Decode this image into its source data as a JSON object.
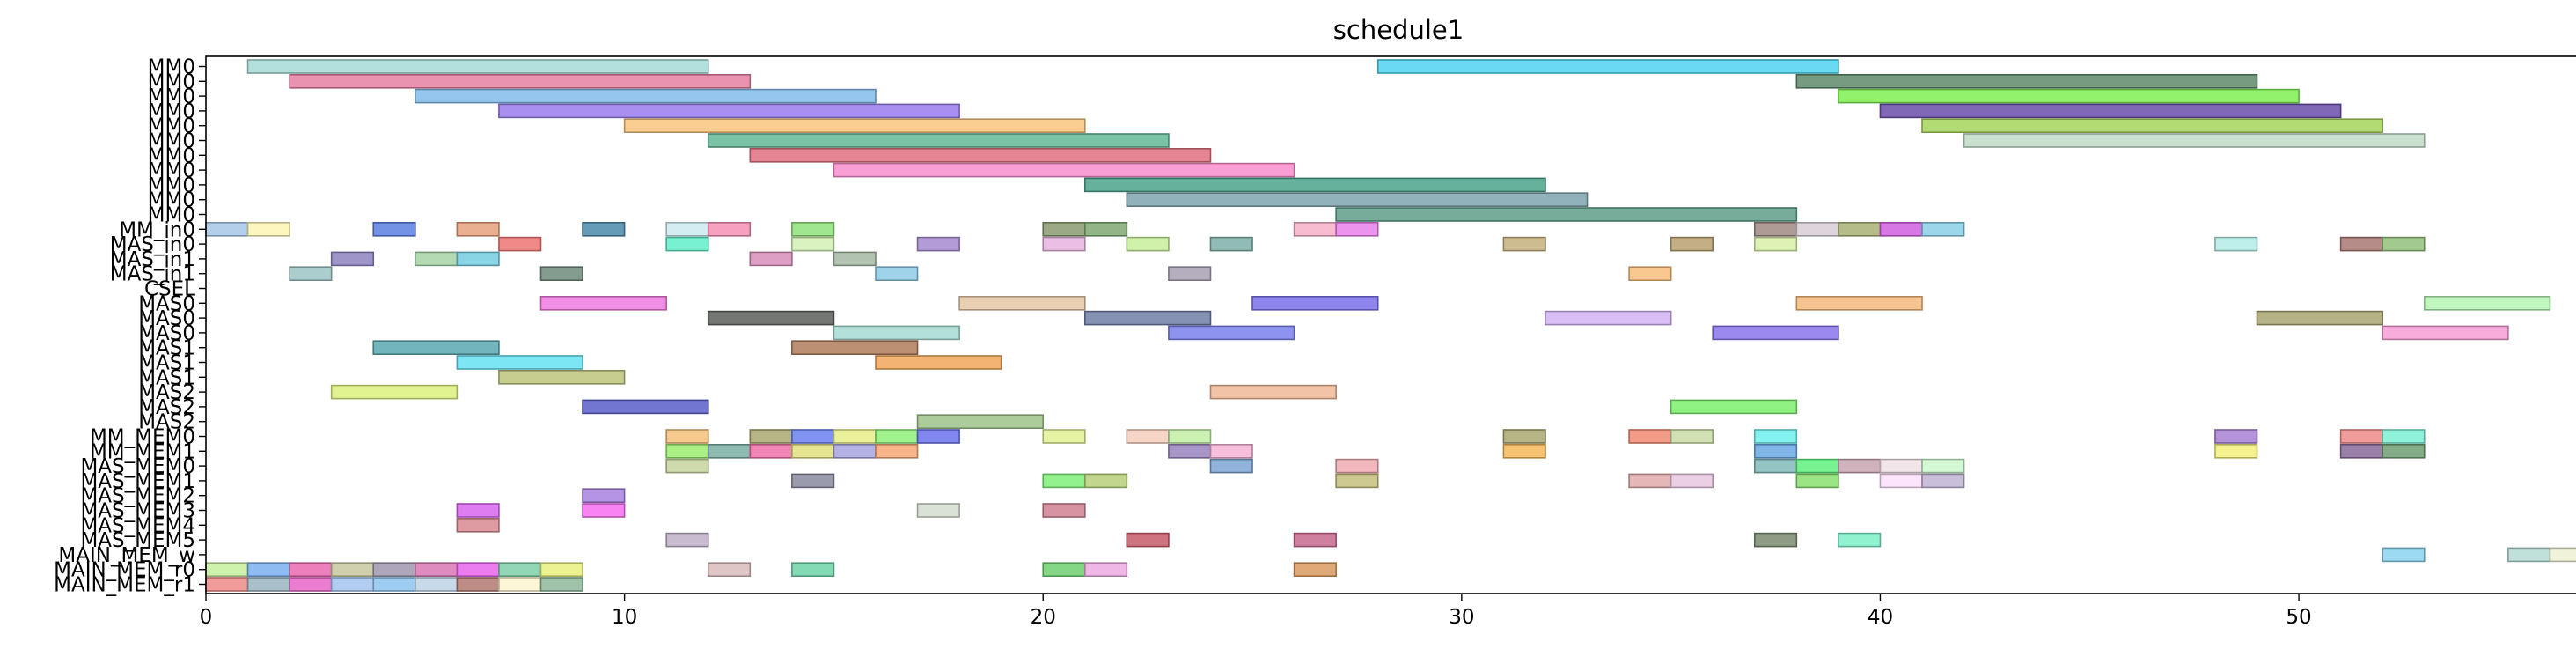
{
  "chart_data": {
    "type": "gantt",
    "title": "schedule1",
    "xlabel": "",
    "ylabel": "",
    "xlim": [
      0,
      57
    ],
    "xticks": [
      0,
      10,
      20,
      30,
      40,
      50
    ],
    "grid": false,
    "rows": [
      "MM0",
      "MM0",
      "MM0",
      "MM0",
      "MM0",
      "MM0",
      "MM0",
      "MM0",
      "MM0",
      "MM0",
      "MM0",
      "MM_in0",
      "MAS_in0",
      "MAS_in1",
      "MAS_in1",
      "CSEL",
      "MAS0",
      "MAS0",
      "MAS0",
      "MAS1",
      "MAS1",
      "MAS1",
      "MAS2",
      "MAS2",
      "MAS2",
      "MM_MEM0",
      "MM_MEM1",
      "MAS_MEM0",
      "MAS_MEM1",
      "MAS_MEM2",
      "MAS_MEM3",
      "MAS_MEM4",
      "MAS_MEM5",
      "MAIN_MEM_w",
      "MAIN_MEM_r0",
      "MAIN_MEM_r1"
    ],
    "tasks": [
      {
        "row": 0,
        "start": 1,
        "end": 12,
        "color": "#a6dbd6"
      },
      {
        "row": 0,
        "start": 28,
        "end": 39,
        "color": "#4dd5f0"
      },
      {
        "row": 1,
        "start": 2,
        "end": 13,
        "color": "#e580a2"
      },
      {
        "row": 1,
        "start": 38,
        "end": 49,
        "color": "#5e8a6a"
      },
      {
        "row": 2,
        "start": 5,
        "end": 16,
        "color": "#82bceb"
      },
      {
        "row": 2,
        "start": 39,
        "end": 50,
        "color": "#7ff052"
      },
      {
        "row": 3,
        "start": 7,
        "end": 18,
        "color": "#9a7ded"
      },
      {
        "row": 3,
        "start": 40,
        "end": 51,
        "color": "#6a4ea9"
      },
      {
        "row": 4,
        "start": 10,
        "end": 21,
        "color": "#f9c47e"
      },
      {
        "row": 4,
        "start": 41,
        "end": 52,
        "color": "#a6d55a"
      },
      {
        "row": 5,
        "start": 12,
        "end": 23,
        "color": "#64b896"
      },
      {
        "row": 5,
        "start": 42,
        "end": 53,
        "color": "#bfdbc6"
      },
      {
        "row": 6,
        "start": 13,
        "end": 24,
        "color": "#e07080"
      },
      {
        "row": 7,
        "start": 15,
        "end": 26,
        "color": "#f98ecf"
      },
      {
        "row": 8,
        "start": 21,
        "end": 32,
        "color": "#4aa38a"
      },
      {
        "row": 9,
        "start": 22,
        "end": 33,
        "color": "#7ea5ae"
      },
      {
        "row": 10,
        "start": 27,
        "end": 38,
        "color": "#5f9e8a"
      },
      {
        "row": 11,
        "start": 0,
        "end": 1,
        "color": "#a6c7e6"
      },
      {
        "row": 11,
        "start": 1,
        "end": 2,
        "color": "#fef5b4"
      },
      {
        "row": 11,
        "start": 4,
        "end": 5,
        "color": "#5a7fe0"
      },
      {
        "row": 11,
        "start": 6,
        "end": 7,
        "color": "#e6a07c"
      },
      {
        "row": 11,
        "start": 9,
        "end": 10,
        "color": "#4a8aa8"
      },
      {
        "row": 11,
        "start": 11,
        "end": 12,
        "color": "#cdeaf0"
      },
      {
        "row": 11,
        "start": 12,
        "end": 13,
        "color": "#f590b5"
      },
      {
        "row": 11,
        "start": 14,
        "end": 15,
        "color": "#8ee27a"
      },
      {
        "row": 11,
        "start": 20,
        "end": 21,
        "color": "#8a9a72"
      },
      {
        "row": 11,
        "start": 21,
        "end": 22,
        "color": "#7ea872"
      },
      {
        "row": 11,
        "start": 26,
        "end": 27,
        "color": "#f6b0c8"
      },
      {
        "row": 11,
        "start": 27,
        "end": 28,
        "color": "#e880ea"
      },
      {
        "row": 11,
        "start": 37,
        "end": 38,
        "color": "#a08a84"
      },
      {
        "row": 11,
        "start": 38,
        "end": 39,
        "color": "#d7cdd6"
      },
      {
        "row": 11,
        "start": 39,
        "end": 40,
        "color": "#a8b074"
      },
      {
        "row": 11,
        "start": 40,
        "end": 41,
        "color": "#cf5fe0"
      },
      {
        "row": 11,
        "start": 41,
        "end": 42,
        "color": "#8acfe6"
      },
      {
        "row": 12,
        "start": 7,
        "end": 8,
        "color": "#f07474"
      },
      {
        "row": 12,
        "start": 11,
        "end": 12,
        "color": "#5ef0c8"
      },
      {
        "row": 12,
        "start": 14,
        "end": 15,
        "color": "#d2f0b4"
      },
      {
        "row": 12,
        "start": 17,
        "end": 18,
        "color": "#a68ad0"
      },
      {
        "row": 12,
        "start": 20,
        "end": 21,
        "color": "#e8b4e0"
      },
      {
        "row": 12,
        "start": 22,
        "end": 23,
        "color": "#c8ee9a"
      },
      {
        "row": 12,
        "start": 24,
        "end": 25,
        "color": "#7eb0a8"
      },
      {
        "row": 12,
        "start": 31,
        "end": 32,
        "color": "#c6b07e"
      },
      {
        "row": 12,
        "start": 35,
        "end": 36,
        "color": "#b8a070"
      },
      {
        "row": 12,
        "start": 37,
        "end": 38,
        "color": "#d8f0a8"
      },
      {
        "row": 12,
        "start": 48,
        "end": 49,
        "color": "#b4ece6"
      },
      {
        "row": 12,
        "start": 51,
        "end": 52,
        "color": "#a87872"
      },
      {
        "row": 12,
        "start": 52,
        "end": 53,
        "color": "#92c07a"
      },
      {
        "row": 13,
        "start": 3,
        "end": 4,
        "color": "#8e82c0"
      },
      {
        "row": 13,
        "start": 5,
        "end": 6,
        "color": "#a6d4a6"
      },
      {
        "row": 13,
        "start": 6,
        "end": 7,
        "color": "#74cde0"
      },
      {
        "row": 13,
        "start": 13,
        "end": 14,
        "color": "#d88eba"
      },
      {
        "row": 13,
        "start": 15,
        "end": 16,
        "color": "#a4b8a4"
      },
      {
        "row": 14,
        "start": 2,
        "end": 3,
        "color": "#9ec4c4"
      },
      {
        "row": 14,
        "start": 8,
        "end": 9,
        "color": "#6e8a7c"
      },
      {
        "row": 14,
        "start": 16,
        "end": 17,
        "color": "#8ecbe6"
      },
      {
        "row": 14,
        "start": 23,
        "end": 24,
        "color": "#a8a0b4"
      },
      {
        "row": 14,
        "start": 34,
        "end": 35,
        "color": "#f8be7c"
      },
      {
        "row": 15,
        "start": 0,
        "end": 0,
        "color": "#ffffff"
      },
      {
        "row": 16,
        "start": 8,
        "end": 11,
        "color": "#f07ae0"
      },
      {
        "row": 16,
        "start": 18,
        "end": 21,
        "color": "#e6c8a6"
      },
      {
        "row": 16,
        "start": 25,
        "end": 28,
        "color": "#7a70ec"
      },
      {
        "row": 16,
        "start": 38,
        "end": 41,
        "color": "#f6ba7c"
      },
      {
        "row": 16,
        "start": 53,
        "end": 56,
        "color": "#b6f6b6"
      },
      {
        "row": 17,
        "start": 12,
        "end": 15,
        "color": "#5a5e5a"
      },
      {
        "row": 17,
        "start": 21,
        "end": 24,
        "color": "#6e7ea4"
      },
      {
        "row": 17,
        "start": 32,
        "end": 35,
        "color": "#d4b4f4"
      },
      {
        "row": 17,
        "start": 49,
        "end": 52,
        "color": "#a8a470"
      },
      {
        "row": 18,
        "start": 15,
        "end": 18,
        "color": "#a6dcd2"
      },
      {
        "row": 18,
        "start": 23,
        "end": 26,
        "color": "#7a80ec"
      },
      {
        "row": 18,
        "start": 36,
        "end": 39,
        "color": "#8a74ec"
      },
      {
        "row": 18,
        "start": 52,
        "end": 55,
        "color": "#f69ed6"
      },
      {
        "row": 19,
        "start": 4,
        "end": 7,
        "color": "#5aa8b0"
      },
      {
        "row": 19,
        "start": 14,
        "end": 17,
        "color": "#b07c5a"
      },
      {
        "row": 20,
        "start": 6,
        "end": 9,
        "color": "#66e2f2"
      },
      {
        "row": 20,
        "start": 16,
        "end": 19,
        "color": "#f0a65a"
      },
      {
        "row": 21,
        "start": 7,
        "end": 10,
        "color": "#bcc47a"
      },
      {
        "row": 22,
        "start": 3,
        "end": 6,
        "color": "#dcf07e"
      },
      {
        "row": 22,
        "start": 24,
        "end": 27,
        "color": "#f0b896"
      },
      {
        "row": 23,
        "start": 9,
        "end": 12,
        "color": "#5a5ec8"
      },
      {
        "row": 23,
        "start": 35,
        "end": 38,
        "color": "#7ef06e"
      },
      {
        "row": 24,
        "start": 17,
        "end": 20,
        "color": "#9ec48a"
      },
      {
        "row": 25,
        "start": 11,
        "end": 12,
        "color": "#f4c07a"
      },
      {
        "row": 25,
        "start": 13,
        "end": 14,
        "color": "#a8a870"
      },
      {
        "row": 25,
        "start": 14,
        "end": 15,
        "color": "#6a80f0"
      },
      {
        "row": 25,
        "start": 15,
        "end": 16,
        "color": "#e6ee8a"
      },
      {
        "row": 25,
        "start": 16,
        "end": 17,
        "color": "#8ef07a"
      },
      {
        "row": 25,
        "start": 17,
        "end": 18,
        "color": "#6a72ec"
      },
      {
        "row": 25,
        "start": 20,
        "end": 21,
        "color": "#e2f094"
      },
      {
        "row": 25,
        "start": 22,
        "end": 23,
        "color": "#f4cdbc"
      },
      {
        "row": 25,
        "start": 23,
        "end": 24,
        "color": "#c2eea6"
      },
      {
        "row": 25,
        "start": 31,
        "end": 32,
        "color": "#a8a870"
      },
      {
        "row": 25,
        "start": 34,
        "end": 35,
        "color": "#f08a72"
      },
      {
        "row": 25,
        "start": 35,
        "end": 36,
        "color": "#cadca6"
      },
      {
        "row": 25,
        "start": 37,
        "end": 38,
        "color": "#6ef0ee"
      },
      {
        "row": 25,
        "start": 48,
        "end": 49,
        "color": "#a880d4"
      },
      {
        "row": 25,
        "start": 51,
        "end": 52,
        "color": "#f08a8a"
      },
      {
        "row": 25,
        "start": 52,
        "end": 53,
        "color": "#7ef0d4"
      },
      {
        "row": 26,
        "start": 11,
        "end": 12,
        "color": "#9aec6e"
      },
      {
        "row": 26,
        "start": 12,
        "end": 13,
        "color": "#7aaea4"
      },
      {
        "row": 26,
        "start": 13,
        "end": 14,
        "color": "#f070a8"
      },
      {
        "row": 26,
        "start": 14,
        "end": 15,
        "color": "#e0e07e"
      },
      {
        "row": 26,
        "start": 15,
        "end": 16,
        "color": "#a4a4e0"
      },
      {
        "row": 26,
        "start": 16,
        "end": 17,
        "color": "#f6a874"
      },
      {
        "row": 26,
        "start": 23,
        "end": 24,
        "color": "#9a84c0"
      },
      {
        "row": 26,
        "start": 24,
        "end": 25,
        "color": "#f6b4d2"
      },
      {
        "row": 26,
        "start": 31,
        "end": 32,
        "color": "#f6b85a"
      },
      {
        "row": 26,
        "start": 37,
        "end": 38,
        "color": "#6aa8e6"
      },
      {
        "row": 26,
        "start": 48,
        "end": 49,
        "color": "#f4f07a"
      },
      {
        "row": 26,
        "start": 51,
        "end": 52,
        "color": "#8a6a9a"
      },
      {
        "row": 26,
        "start": 52,
        "end": 53,
        "color": "#6e9e72"
      },
      {
        "row": 27,
        "start": 11,
        "end": 12,
        "color": "#c6d49e"
      },
      {
        "row": 27,
        "start": 24,
        "end": 25,
        "color": "#7ea4d4"
      },
      {
        "row": 27,
        "start": 27,
        "end": 28,
        "color": "#f0aab0"
      },
      {
        "row": 27,
        "start": 37,
        "end": 38,
        "color": "#80b8b8"
      },
      {
        "row": 27,
        "start": 38,
        "end": 39,
        "color": "#5ef07e"
      },
      {
        "row": 27,
        "start": 39,
        "end": 40,
        "color": "#c8a4b0"
      },
      {
        "row": 27,
        "start": 40,
        "end": 41,
        "color": "#f0e0e6"
      },
      {
        "row": 27,
        "start": 41,
        "end": 42,
        "color": "#ccf6cc"
      },
      {
        "row": 28,
        "start": 14,
        "end": 15,
        "color": "#8a8aa0"
      },
      {
        "row": 28,
        "start": 20,
        "end": 21,
        "color": "#7ef07a"
      },
      {
        "row": 28,
        "start": 21,
        "end": 22,
        "color": "#b6d07a"
      },
      {
        "row": 28,
        "start": 27,
        "end": 28,
        "color": "#c6c07e"
      },
      {
        "row": 28,
        "start": 34,
        "end": 35,
        "color": "#e0aaaa"
      },
      {
        "row": 28,
        "start": 35,
        "end": 36,
        "color": "#e8c8e0"
      },
      {
        "row": 28,
        "start": 38,
        "end": 39,
        "color": "#8ae06e"
      },
      {
        "row": 28,
        "start": 40,
        "end": 41,
        "color": "#fce0fc"
      },
      {
        "row": 28,
        "start": 41,
        "end": 42,
        "color": "#c0b4d4"
      },
      {
        "row": 29,
        "start": 9,
        "end": 10,
        "color": "#a880e0"
      },
      {
        "row": 30,
        "start": 6,
        "end": 7,
        "color": "#d866f0"
      },
      {
        "row": 30,
        "start": 9,
        "end": 10,
        "color": "#f66ef0"
      },
      {
        "row": 30,
        "start": 17,
        "end": 18,
        "color": "#d4dcd0"
      },
      {
        "row": 30,
        "start": 20,
        "end": 21,
        "color": "#d08090"
      },
      {
        "row": 31,
        "start": 6,
        "end": 7,
        "color": "#d88a90"
      },
      {
        "row": 32,
        "start": 11,
        "end": 12,
        "color": "#c0b0c8"
      },
      {
        "row": 32,
        "start": 22,
        "end": 23,
        "color": "#c85a6a"
      },
      {
        "row": 32,
        "start": 26,
        "end": 27,
        "color": "#c86a8e"
      },
      {
        "row": 32,
        "start": 37,
        "end": 38,
        "color": "#7a8a70"
      },
      {
        "row": 32,
        "start": 39,
        "end": 40,
        "color": "#7ef0c8"
      },
      {
        "row": 33,
        "start": 52,
        "end": 53,
        "color": "#8ad4ee"
      },
      {
        "row": 33,
        "start": 55,
        "end": 56,
        "color": "#b4dcd4"
      },
      {
        "row": 33,
        "start": 56,
        "end": 57,
        "color": "#eef0d4"
      },
      {
        "row": 34,
        "start": 0,
        "end": 1,
        "color": "#c6ee9e"
      },
      {
        "row": 34,
        "start": 1,
        "end": 2,
        "color": "#7ab0f0"
      },
      {
        "row": 34,
        "start": 2,
        "end": 3,
        "color": "#e86ab0"
      },
      {
        "row": 34,
        "start": 3,
        "end": 4,
        "color": "#c8c8a0"
      },
      {
        "row": 34,
        "start": 4,
        "end": 5,
        "color": "#a098b0"
      },
      {
        "row": 34,
        "start": 5,
        "end": 6,
        "color": "#d878b4"
      },
      {
        "row": 34,
        "start": 6,
        "end": 7,
        "color": "#e866ee"
      },
      {
        "row": 34,
        "start": 7,
        "end": 8,
        "color": "#7ed0a8"
      },
      {
        "row": 34,
        "start": 8,
        "end": 9,
        "color": "#e8f07e"
      },
      {
        "row": 34,
        "start": 12,
        "end": 13,
        "color": "#d8bcbc"
      },
      {
        "row": 34,
        "start": 14,
        "end": 15,
        "color": "#6ed4a8"
      },
      {
        "row": 34,
        "start": 20,
        "end": 21,
        "color": "#6ed06e"
      },
      {
        "row": 34,
        "start": 21,
        "end": 22,
        "color": "#ecaae0"
      },
      {
        "row": 34,
        "start": 26,
        "end": 27,
        "color": "#da9a60"
      },
      {
        "row": 35,
        "start": 0,
        "end": 1,
        "color": "#f08a8a"
      },
      {
        "row": 35,
        "start": 1,
        "end": 2,
        "color": "#9ab4c0"
      },
      {
        "row": 35,
        "start": 2,
        "end": 3,
        "color": "#e866c8"
      },
      {
        "row": 35,
        "start": 3,
        "end": 4,
        "color": "#a4c4f0"
      },
      {
        "row": 35,
        "start": 4,
        "end": 5,
        "color": "#8ec4ee"
      },
      {
        "row": 35,
        "start": 5,
        "end": 6,
        "color": "#bcd4e6"
      },
      {
        "row": 35,
        "start": 6,
        "end": 7,
        "color": "#b07870"
      },
      {
        "row": 35,
        "start": 7,
        "end": 8,
        "color": "#fef6d0"
      },
      {
        "row": 35,
        "start": 8,
        "end": 9,
        "color": "#8eb89a"
      }
    ]
  }
}
